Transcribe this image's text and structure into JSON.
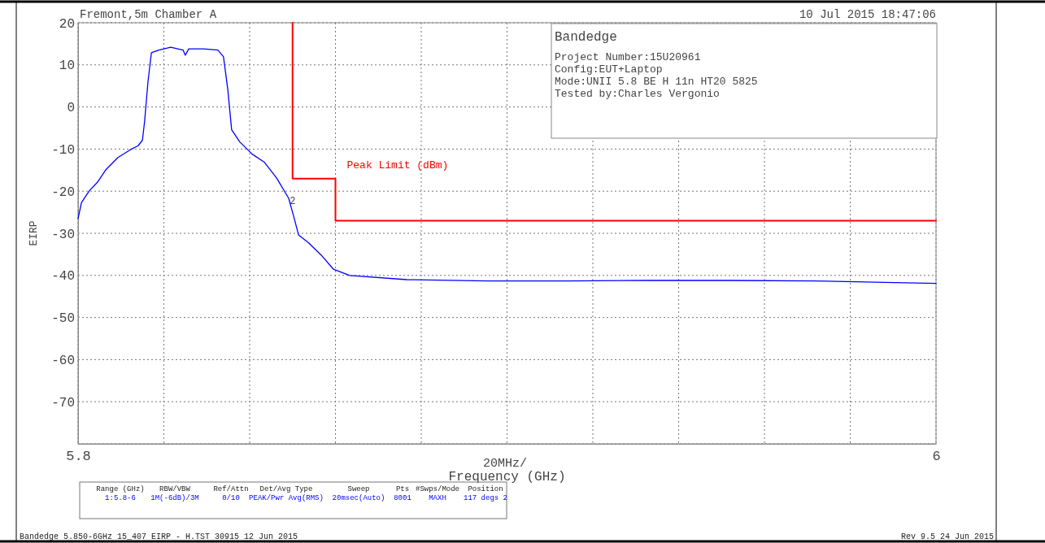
{
  "chart_data": {
    "type": "line",
    "title": "Fremont,5m Chamber A",
    "xlabel": "Frequency (GHz)",
    "ylabel": "EIRP",
    "xlim": [
      5.8,
      6
    ],
    "xticks": [
      5.8,
      {
        "value": 5.82,
        "label": null
      },
      {
        "value": 5.84,
        "label": null
      },
      {
        "value": 5.86,
        "label": null
      },
      {
        "value": 5.88,
        "label": null
      },
      {
        "value": 5.9,
        "label": null
      },
      {
        "value": 5.92,
        "label": null
      },
      {
        "value": 5.94,
        "label": null
      },
      {
        "value": 5.96,
        "label": null
      },
      {
        "value": 5.98,
        "label": null
      },
      6
    ],
    "ylim": [
      -80,
      20
    ],
    "yticks": [
      {
        "value": -80,
        "label": null
      },
      -70,
      -60,
      -50,
      -40,
      -30,
      -20,
      -10,
      0,
      10,
      20
    ],
    "grid": true,
    "series": [
      {
        "color": "#0000ff",
        "x": [
          5.8,
          5.8008,
          5.8027,
          5.8045,
          5.8064,
          5.8093,
          5.8121,
          5.814,
          5.815,
          5.8155,
          5.8163,
          5.8171,
          5.8188,
          5.8216,
          5.8245,
          5.825,
          5.8258,
          5.8292,
          5.8326,
          5.8339,
          5.8349,
          5.8358,
          5.8377,
          5.8406,
          5.8434,
          5.8463,
          5.8491,
          5.8504,
          5.8514,
          5.8538,
          5.8567,
          5.8595,
          5.8633,
          5.8766,
          5.8955,
          5.9145,
          5.9334,
          5.9524,
          5.9714,
          5.9903,
          6.0
        ],
        "values": [
          -26.5,
          -22.7,
          -19.8,
          -17.9,
          -15,
          -12,
          -10.2,
          -9.2,
          -7.9,
          -3.5,
          6,
          12.9,
          13.5,
          14.2,
          13.5,
          12.3,
          13.8,
          13.8,
          13.5,
          11.9,
          4.2,
          -5.4,
          -8.3,
          -11.2,
          -13.1,
          -16.9,
          -21.7,
          -26.5,
          -30.4,
          -32.3,
          -35.2,
          -38.5,
          -40,
          -41,
          -41.3,
          -41.3,
          -41.2,
          -41.2,
          -41.3,
          -41.7,
          -41.9
        ]
      },
      {
        "name": "Peak Limit (dBm)",
        "color": "#ff0000",
        "x": [
          5.85,
          5.85,
          5.86,
          5.86,
          6.0
        ],
        "values": [
          20,
          -17,
          -17,
          -27,
          -27
        ]
      }
    ],
    "annotations": [
      "10 Jul 2015   18:47:06",
      "Bandedge",
      "Project Number:15U20961",
      "Config:EUT+Laptop",
      "Mode:UNII 5.8 BE H 11n HT20 5825",
      "Tested by:Charles Vergonio",
      "Range (GHz)",
      "RBW/VBW",
      "Ref/Attn",
      "Det/Avg Type",
      "Sweep",
      "Pts",
      "#Swps/Mode",
      "Position",
      "1:5.8-6",
      "1M(-6dB)/3M",
      "0/10",
      "PEAK/Pwr Avg(RMS)",
      "20msec(Auto)",
      "8001",
      "MAXH",
      "117 degs 2",
      "Bandedge 5.850-6GHz 15_407 EIRP - H.TST 30915 12 Jun 2015",
      "Rev 9.5 24 Jun 2015",
      "20MHz/",
      {
        "text": "2",
        "x": 5.85,
        "y": -23
      }
    ]
  }
}
